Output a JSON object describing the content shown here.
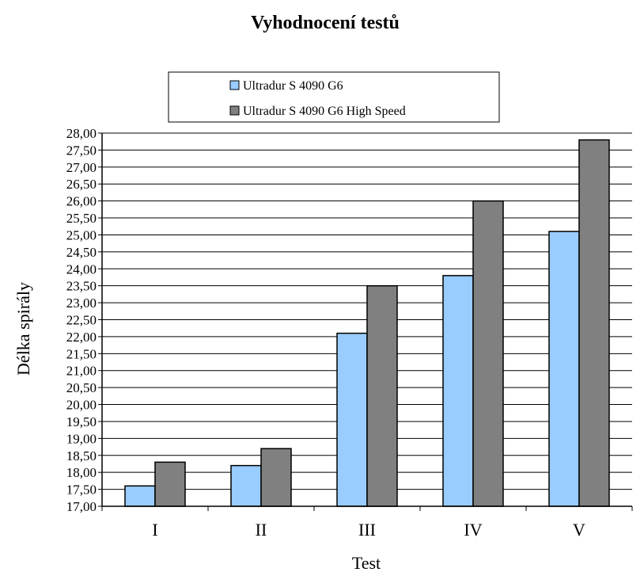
{
  "chart_data": {
    "type": "bar",
    "title": "Vyhodnocení testů",
    "xlabel": "Test",
    "ylabel": "Délka spirály",
    "categories": [
      "I",
      "II",
      "III",
      "IV",
      "V"
    ],
    "series": [
      {
        "name": "Ultradur S 4090 G6",
        "color": "#99CCFF",
        "values": [
          17.6,
          18.2,
          22.1,
          23.8,
          25.1
        ]
      },
      {
        "name": "Ultradur S 4090 G6 High Speed",
        "color": "#808080",
        "values": [
          18.3,
          18.7,
          23.5,
          26.0,
          27.8
        ]
      }
    ],
    "ylim": [
      17,
      28
    ],
    "ystep": 0.5,
    "ytick_labels": [
      "17,00",
      "17,50",
      "18,00",
      "18,50",
      "19,00",
      "19,50",
      "20,00",
      "20,50",
      "21,00",
      "21,50",
      "22,00",
      "22,50",
      "23,00",
      "23,50",
      "24,00",
      "24,50",
      "25,00",
      "25,50",
      "26,00",
      "26,50",
      "27,00",
      "27,50",
      "28,00"
    ],
    "grid": true,
    "legend_position": "top"
  }
}
